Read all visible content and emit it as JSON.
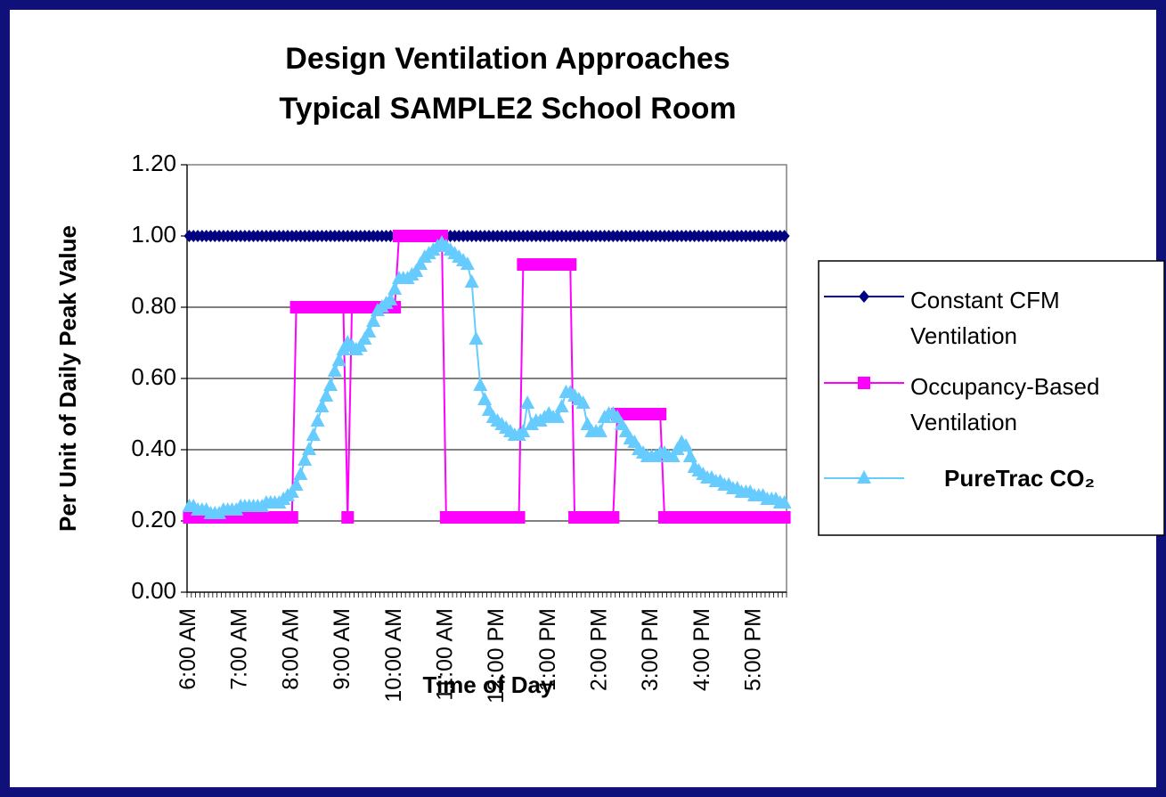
{
  "chart_data": {
    "type": "line",
    "title": [
      "Design Ventilation Approaches",
      "Typical SAMPLE2 School Room"
    ],
    "y_label": "Per Unit of Daily Peak Value",
    "x_label": "Time of Day",
    "ylim": [
      0,
      1.2
    ],
    "yticks": [
      {
        "value": 0,
        "label": "0.00"
      },
      {
        "value": 0.2,
        "label": "0.20"
      },
      {
        "value": 0.4,
        "label": "0.40"
      },
      {
        "value": 0.6,
        "label": "0.60"
      },
      {
        "value": 0.8,
        "label": "0.80"
      },
      {
        "value": 1,
        "label": "1.00"
      },
      {
        "value": 1.2,
        "label": "1.20"
      }
    ],
    "grid": true,
    "legend": "right",
    "categories": [
      "6:00 AM",
      null,
      null,
      null,
      null,
      null,
      null,
      null,
      null,
      null,
      null,
      null,
      "7:00 AM",
      null,
      null,
      null,
      null,
      null,
      null,
      null,
      null,
      null,
      null,
      null,
      "8:00 AM",
      null,
      null,
      null,
      null,
      null,
      null,
      null,
      null,
      null,
      null,
      null,
      "9:00 AM",
      null,
      null,
      null,
      null,
      null,
      null,
      null,
      null,
      null,
      null,
      null,
      "10:00 AM",
      null,
      null,
      null,
      null,
      null,
      null,
      null,
      null,
      null,
      null,
      null,
      "11:00 AM",
      null,
      null,
      null,
      null,
      null,
      null,
      null,
      null,
      null,
      null,
      null,
      "12:00 PM",
      null,
      null,
      null,
      null,
      null,
      null,
      null,
      null,
      null,
      null,
      null,
      "1:00 PM",
      null,
      null,
      null,
      null,
      null,
      null,
      null,
      null,
      null,
      null,
      null,
      "2:00 PM",
      null,
      null,
      null,
      null,
      null,
      null,
      null,
      null,
      null,
      null,
      null,
      "3:00 PM",
      null,
      null,
      null,
      null,
      null,
      null,
      null,
      null,
      null,
      null,
      null,
      "4:00 PM",
      null,
      null,
      null,
      null,
      null,
      null,
      null,
      null,
      null,
      null,
      null,
      "5:00 PM",
      null,
      null,
      null,
      null,
      null,
      null,
      null
    ],
    "series": [
      {
        "name": "Constant CFM Ventilation",
        "color": "#000080",
        "marker": "diamond",
        "values": [
          1,
          1,
          1,
          1,
          1,
          1,
          1,
          1,
          1,
          1,
          1,
          1,
          1,
          1,
          1,
          1,
          1,
          1,
          1,
          1,
          1,
          1,
          1,
          1,
          1,
          1,
          1,
          1,
          1,
          1,
          1,
          1,
          1,
          1,
          1,
          1,
          1,
          1,
          1,
          1,
          1,
          1,
          1,
          1,
          1,
          1,
          1,
          1,
          1,
          1,
          1,
          1,
          1,
          1,
          1,
          1,
          1,
          1,
          1,
          1,
          1,
          1,
          1,
          1,
          1,
          1,
          1,
          1,
          1,
          1,
          1,
          1,
          1,
          1,
          1,
          1,
          1,
          1,
          1,
          1,
          1,
          1,
          1,
          1,
          1,
          1,
          1,
          1,
          1,
          1,
          1,
          1,
          1,
          1,
          1,
          1,
          1,
          1,
          1,
          1,
          1,
          1,
          1,
          1,
          1,
          1,
          1,
          1,
          1,
          1,
          1,
          1,
          1,
          1,
          1,
          1,
          1,
          1,
          1,
          1,
          1,
          1,
          1,
          1,
          1,
          1,
          1,
          1,
          1,
          1,
          1,
          1,
          1,
          1,
          1,
          1,
          1,
          1,
          1,
          1
        ]
      },
      {
        "name": "Occupancy-Based Ventilation",
        "color": "#ff00ff",
        "marker": "square",
        "values": [
          0.21,
          0.21,
          0.21,
          0.21,
          0.21,
          0.21,
          0.21,
          0.21,
          0.21,
          0.21,
          0.21,
          0.21,
          0.21,
          0.21,
          0.21,
          0.21,
          0.21,
          0.21,
          0.21,
          0.21,
          0.21,
          0.21,
          0.21,
          0.21,
          0.21,
          0.8,
          0.8,
          0.8,
          0.8,
          0.8,
          0.8,
          0.8,
          0.8,
          0.8,
          0.8,
          0.8,
          0.8,
          0.21,
          0.8,
          0.8,
          0.8,
          0.8,
          0.8,
          0.8,
          0.8,
          0.8,
          0.8,
          0.8,
          0.8,
          1,
          1,
          1,
          1,
          1,
          1,
          1,
          1,
          1,
          1,
          1,
          0.21,
          0.21,
          0.21,
          0.21,
          0.21,
          0.21,
          0.21,
          0.21,
          0.21,
          0.21,
          0.21,
          0.21,
          0.21,
          0.21,
          0.21,
          0.21,
          0.21,
          0.21,
          0.92,
          0.92,
          0.92,
          0.92,
          0.92,
          0.92,
          0.92,
          0.92,
          0.92,
          0.92,
          0.92,
          0.92,
          0.21,
          0.21,
          0.21,
          0.21,
          0.21,
          0.21,
          0.21,
          0.21,
          0.21,
          0.21,
          0.5,
          0.5,
          0.5,
          0.5,
          0.5,
          0.5,
          0.5,
          0.5,
          0.5,
          0.5,
          0.5,
          0.21,
          0.21,
          0.21,
          0.21,
          0.21,
          0.21,
          0.21,
          0.21,
          0.21,
          0.21,
          0.21,
          0.21,
          0.21,
          0.21,
          0.21,
          0.21,
          0.21,
          0.21,
          0.21,
          0.21,
          0.21,
          0.21,
          0.21,
          0.21,
          0.21,
          0.21,
          0.21,
          0.21,
          0.21
        ]
      },
      {
        "name": "PureTrac CO₂",
        "color": "#66ccff",
        "marker": "triangle",
        "values": [
          0.24,
          0.24,
          0.23,
          0.23,
          0.23,
          0.22,
          0.22,
          0.22,
          0.23,
          0.23,
          0.23,
          0.23,
          0.24,
          0.24,
          0.24,
          0.24,
          0.24,
          0.24,
          0.25,
          0.25,
          0.25,
          0.25,
          0.26,
          0.27,
          0.28,
          0.3,
          0.33,
          0.37,
          0.4,
          0.44,
          0.48,
          0.52,
          0.55,
          0.58,
          0.62,
          0.65,
          0.68,
          0.7,
          0.69,
          0.68,
          0.69,
          0.71,
          0.73,
          0.76,
          0.79,
          0.8,
          0.81,
          0.82,
          0.85,
          0.88,
          0.88,
          0.88,
          0.89,
          0.9,
          0.92,
          0.94,
          0.95,
          0.96,
          0.97,
          0.98,
          0.97,
          0.96,
          0.95,
          0.94,
          0.93,
          0.92,
          0.87,
          0.71,
          0.58,
          0.54,
          0.51,
          0.49,
          0.48,
          0.47,
          0.46,
          0.45,
          0.44,
          0.44,
          0.45,
          0.53,
          0.47,
          0.48,
          0.48,
          0.49,
          0.5,
          0.49,
          0.49,
          0.52,
          0.56,
          0.56,
          0.55,
          0.54,
          0.53,
          0.47,
          0.45,
          0.45,
          0.45,
          0.49,
          0.5,
          0.5,
          0.49,
          0.47,
          0.45,
          0.43,
          0.42,
          0.4,
          0.39,
          0.38,
          0.38,
          0.38,
          0.39,
          0.39,
          0.38,
          0.38,
          0.4,
          0.42,
          0.41,
          0.38,
          0.35,
          0.34,
          0.33,
          0.32,
          0.32,
          0.31,
          0.31,
          0.3,
          0.3,
          0.29,
          0.29,
          0.28,
          0.28,
          0.28,
          0.27,
          0.27,
          0.27,
          0.26,
          0.26,
          0.26,
          0.25,
          0.25
        ]
      }
    ]
  }
}
